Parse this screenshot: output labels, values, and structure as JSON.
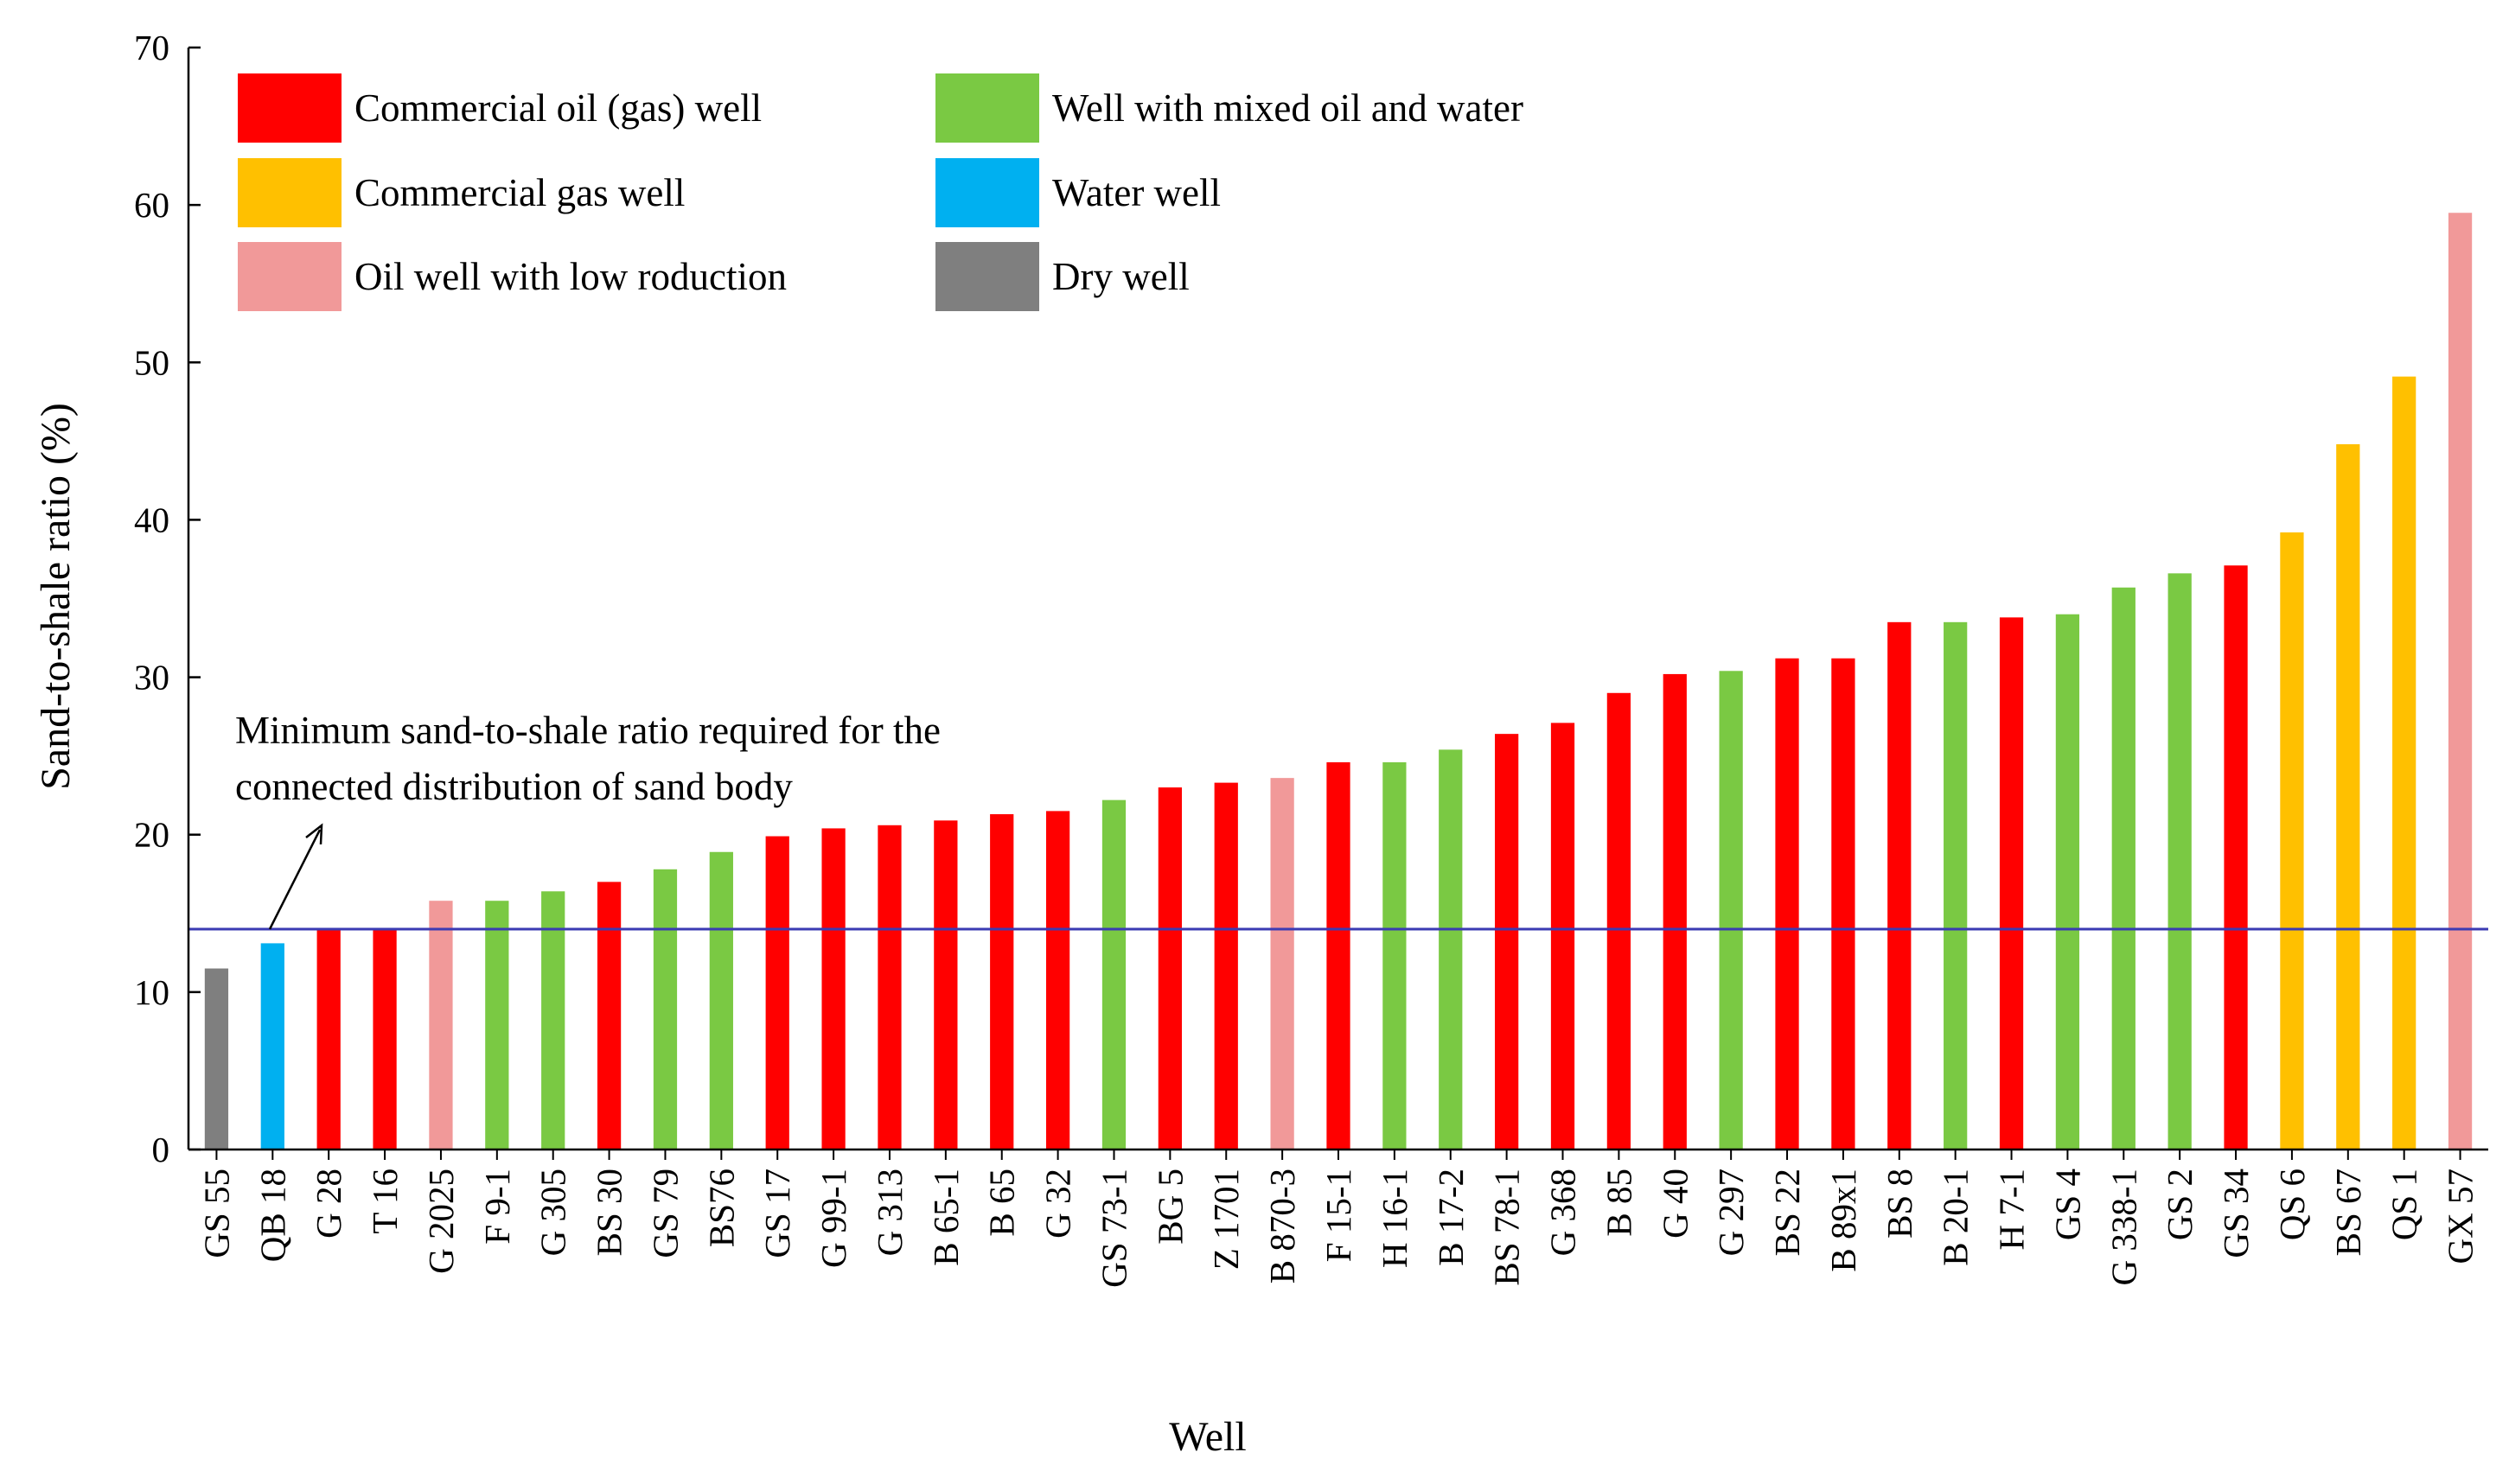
{
  "chart_data": {
    "type": "bar",
    "title": "",
    "xlabel": "Well",
    "ylabel": "Sand-to-shale ratio (%)",
    "ylim": [
      0,
      70
    ],
    "yticks": [
      0,
      10,
      20,
      30,
      40,
      50,
      60,
      70
    ],
    "grid": false,
    "legend_position": "top-left",
    "colors": {
      "commercial_oil_gas": "#ff0000",
      "commercial_gas": "#ffc000",
      "low_production": "#f19999",
      "mixed_oil_water": "#7ac943",
      "water": "#00b0f0",
      "dry": "#7f7f7f",
      "threshold_line": "#3b3bb3"
    },
    "legend": [
      {
        "label": "Commercial oil (gas) well",
        "key": "commercial_oil_gas"
      },
      {
        "label": "Well  with mixed oil and water",
        "key": "mixed_oil_water"
      },
      {
        "label": "Commercial gas well",
        "key": "commercial_gas"
      },
      {
        "label": "Water well",
        "key": "water"
      },
      {
        "label": "Oil well with low roduction",
        "key": "low_production"
      },
      {
        "label": "Dry well",
        "key": "dry"
      }
    ],
    "threshold": {
      "value": 14,
      "label_line1": "Minimum sand-to-shale ratio required for the",
      "label_line2": "connected distribution of sand body"
    },
    "categories": [
      "GS 55",
      "QB 18",
      "G 28",
      "T 16",
      "G 2025",
      "F 9-1",
      "G 305",
      "BS 30",
      "GS 79",
      "BS76",
      "GS 17",
      "G 99-1",
      "G 313",
      "B 65-1",
      "B 65",
      "G 32",
      "GS 73-1",
      "BG 5",
      "Z 1701",
      "B 870-3",
      "F 15-1",
      "H 16-1",
      "B 17-2",
      "BS 78-1",
      "G 368",
      "B 85",
      "G 40",
      "G 297",
      "BS 22",
      "B 89x1",
      "BS 8",
      "B 20-1",
      "H 7-1",
      "GS 4",
      "G 338-1",
      "GS 2",
      "GS 34",
      "QS 6",
      "BS 67",
      "QS 1",
      "GX 57"
    ],
    "values": [
      11.5,
      13.1,
      14.0,
      14.0,
      15.8,
      15.8,
      16.4,
      17.0,
      17.8,
      18.9,
      19.9,
      20.4,
      20.6,
      20.9,
      21.3,
      21.5,
      22.2,
      23.0,
      23.3,
      23.6,
      24.6,
      24.6,
      25.4,
      26.4,
      27.1,
      29.0,
      30.2,
      30.4,
      31.2,
      31.2,
      33.5,
      33.5,
      33.8,
      34.0,
      35.7,
      36.6,
      37.1,
      39.2,
      44.8,
      49.1,
      59.5
    ],
    "well_types": [
      "dry",
      "water",
      "commercial_oil_gas",
      "commercial_oil_gas",
      "low_production",
      "mixed_oil_water",
      "mixed_oil_water",
      "commercial_oil_gas",
      "mixed_oil_water",
      "mixed_oil_water",
      "commercial_oil_gas",
      "commercial_oil_gas",
      "commercial_oil_gas",
      "commercial_oil_gas",
      "commercial_oil_gas",
      "commercial_oil_gas",
      "mixed_oil_water",
      "commercial_oil_gas",
      "commercial_oil_gas",
      "low_production",
      "commercial_oil_gas",
      "mixed_oil_water",
      "mixed_oil_water",
      "commercial_oil_gas",
      "commercial_oil_gas",
      "commercial_oil_gas",
      "commercial_oil_gas",
      "mixed_oil_water",
      "commercial_oil_gas",
      "commercial_oil_gas",
      "commercial_oil_gas",
      "mixed_oil_water",
      "commercial_oil_gas",
      "mixed_oil_water",
      "mixed_oil_water",
      "mixed_oil_water",
      "commercial_oil_gas",
      "commercial_gas",
      "commercial_gas",
      "commercial_gas",
      "low_production"
    ]
  }
}
